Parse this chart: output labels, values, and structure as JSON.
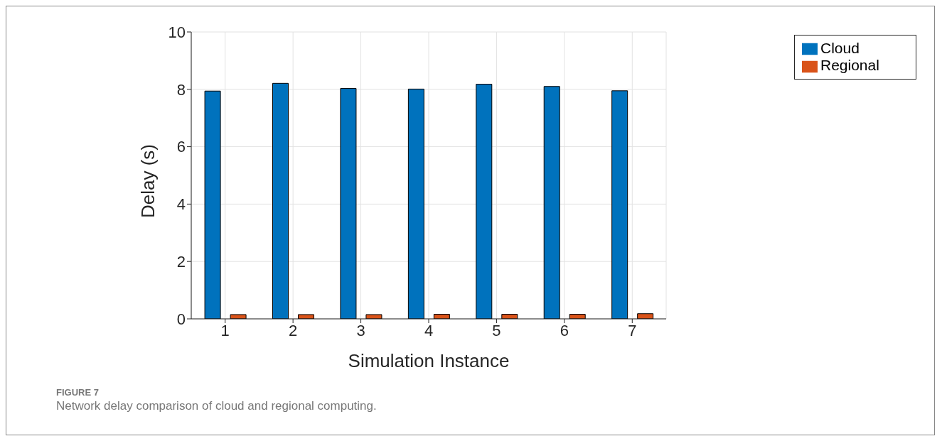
{
  "chart_data": {
    "type": "bar",
    "xlabel": "Simulation Instance",
    "ylabel": "Delay (s)",
    "categories": [
      "1",
      "2",
      "3",
      "4",
      "5",
      "6",
      "7"
    ],
    "series": [
      {
        "name": "Cloud",
        "color": "#0072bd",
        "values": [
          7.94,
          8.21,
          8.03,
          8.01,
          8.18,
          8.1,
          7.95
        ]
      },
      {
        "name": "Regional",
        "color": "#d95319",
        "values": [
          0.15,
          0.15,
          0.15,
          0.16,
          0.16,
          0.16,
          0.18
        ]
      }
    ],
    "ylim": [
      0,
      10
    ],
    "yticks": [
      0,
      2,
      4,
      6,
      8,
      10
    ],
    "grid": true,
    "legend": "top right",
    "annotations": [
      "FIGURE 7",
      "Network delay comparison of cloud and regional computing."
    ]
  }
}
